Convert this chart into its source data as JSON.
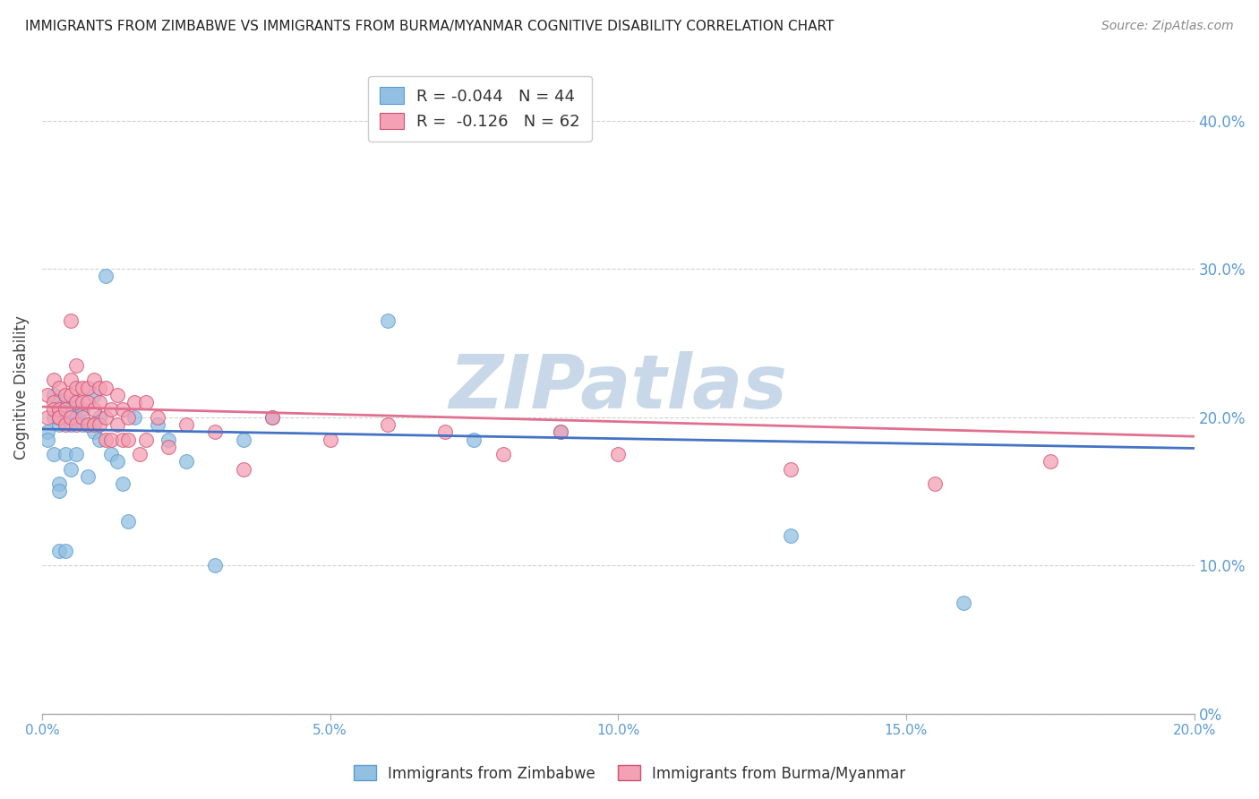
{
  "title": "IMMIGRANTS FROM ZIMBABWE VS IMMIGRANTS FROM BURMA/MYANMAR COGNITIVE DISABILITY CORRELATION CHART",
  "source": "Source: ZipAtlas.com",
  "ylabel": "Cognitive Disability",
  "right_ytick_vals": [
    0.0,
    0.1,
    0.2,
    0.3,
    0.4
  ],
  "right_ytick_labels": [
    "0%",
    "10.0%",
    "20.0%",
    "30.0%",
    "40.0%"
  ],
  "xlim": [
    0.0,
    0.2
  ],
  "ylim": [
    0.0,
    0.44
  ],
  "xtick_vals": [
    0.0,
    0.05,
    0.1,
    0.15,
    0.2
  ],
  "xtick_labels": [
    "0.0%",
    "5.0%",
    "10.0%",
    "15.0%",
    "20.0%"
  ],
  "legend_label1": "R = -0.044   N = 44",
  "legend_label2": "R =  -0.126   N = 62",
  "series1_color": "#92C0E0",
  "series1_edge": "#5b9bd5",
  "series2_color": "#F4A0B5",
  "series2_edge": "#D05070",
  "trendline1_color": "#4472c4",
  "trendline2_color": "#E07090",
  "watermark": "ZIPatlas",
  "watermark_color": "#C8D8E8",
  "background_color": "#ffffff",
  "grid_color": "#cccccc",
  "tick_label_color": "#5b9bd5",
  "series1_x": [
    0.001,
    0.001,
    0.002,
    0.002,
    0.002,
    0.003,
    0.003,
    0.003,
    0.003,
    0.004,
    0.004,
    0.004,
    0.005,
    0.005,
    0.005,
    0.005,
    0.006,
    0.006,
    0.006,
    0.007,
    0.007,
    0.008,
    0.008,
    0.009,
    0.009,
    0.01,
    0.01,
    0.011,
    0.012,
    0.013,
    0.014,
    0.015,
    0.016,
    0.02,
    0.022,
    0.025,
    0.03,
    0.035,
    0.04,
    0.06,
    0.075,
    0.09,
    0.13,
    0.16
  ],
  "series1_y": [
    0.19,
    0.185,
    0.2,
    0.215,
    0.175,
    0.195,
    0.155,
    0.15,
    0.11,
    0.21,
    0.175,
    0.11,
    0.205,
    0.2,
    0.195,
    0.165,
    0.21,
    0.2,
    0.175,
    0.205,
    0.195,
    0.195,
    0.16,
    0.215,
    0.19,
    0.185,
    0.2,
    0.295,
    0.175,
    0.17,
    0.155,
    0.13,
    0.2,
    0.195,
    0.185,
    0.17,
    0.1,
    0.185,
    0.2,
    0.265,
    0.185,
    0.19,
    0.12,
    0.075
  ],
  "series2_x": [
    0.001,
    0.001,
    0.002,
    0.002,
    0.002,
    0.003,
    0.003,
    0.003,
    0.003,
    0.004,
    0.004,
    0.004,
    0.005,
    0.005,
    0.005,
    0.005,
    0.006,
    0.006,
    0.006,
    0.006,
    0.007,
    0.007,
    0.007,
    0.008,
    0.008,
    0.008,
    0.009,
    0.009,
    0.009,
    0.01,
    0.01,
    0.01,
    0.011,
    0.011,
    0.011,
    0.012,
    0.012,
    0.013,
    0.013,
    0.014,
    0.014,
    0.015,
    0.015,
    0.016,
    0.017,
    0.018,
    0.018,
    0.02,
    0.022,
    0.025,
    0.03,
    0.035,
    0.04,
    0.05,
    0.06,
    0.07,
    0.08,
    0.09,
    0.1,
    0.13,
    0.155,
    0.175
  ],
  "series2_y": [
    0.215,
    0.2,
    0.225,
    0.21,
    0.205,
    0.2,
    0.22,
    0.205,
    0.2,
    0.215,
    0.205,
    0.195,
    0.225,
    0.265,
    0.215,
    0.2,
    0.235,
    0.22,
    0.21,
    0.195,
    0.22,
    0.21,
    0.2,
    0.22,
    0.21,
    0.195,
    0.225,
    0.205,
    0.195,
    0.22,
    0.21,
    0.195,
    0.22,
    0.2,
    0.185,
    0.205,
    0.185,
    0.215,
    0.195,
    0.205,
    0.185,
    0.2,
    0.185,
    0.21,
    0.175,
    0.21,
    0.185,
    0.2,
    0.18,
    0.195,
    0.19,
    0.165,
    0.2,
    0.185,
    0.195,
    0.19,
    0.175,
    0.19,
    0.175,
    0.165,
    0.155,
    0.17
  ],
  "bottom_legend_label1": "Immigrants from Zimbabwe",
  "bottom_legend_label2": "Immigrants from Burma/Myanmar"
}
